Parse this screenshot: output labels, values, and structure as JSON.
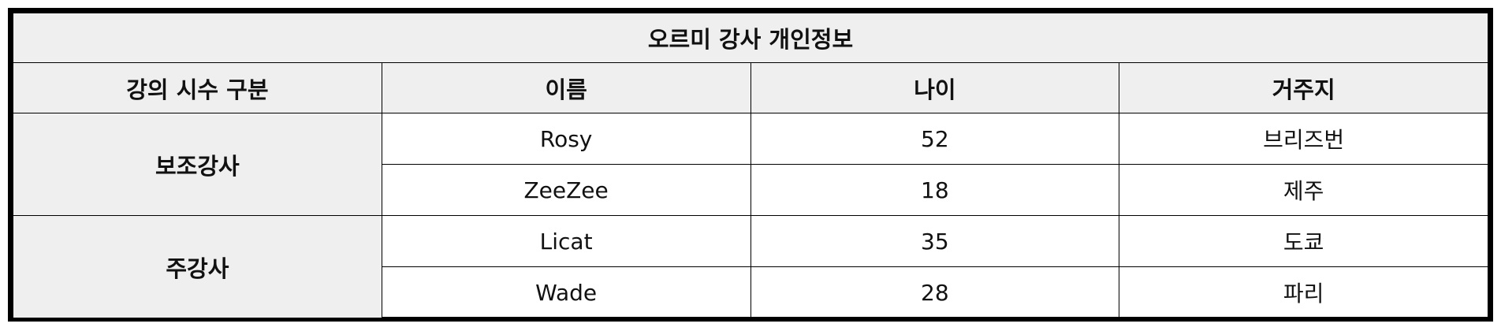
{
  "table": {
    "caption": "오르미 강사 개인정보",
    "headers": [
      "강의 시수 구분",
      "이름",
      "나이",
      "거주지"
    ],
    "groups": [
      {
        "label": "보조강사",
        "rows": [
          {
            "name": "Rosy",
            "age": "52",
            "residence": "브리즈번"
          },
          {
            "name": "ZeeZee",
            "age": "18",
            "residence": "제주"
          }
        ]
      },
      {
        "label": "주강사",
        "rows": [
          {
            "name": "Licat",
            "age": "35",
            "residence": "도쿄"
          },
          {
            "name": "Wade",
            "age": "28",
            "residence": "파리"
          }
        ]
      }
    ]
  }
}
